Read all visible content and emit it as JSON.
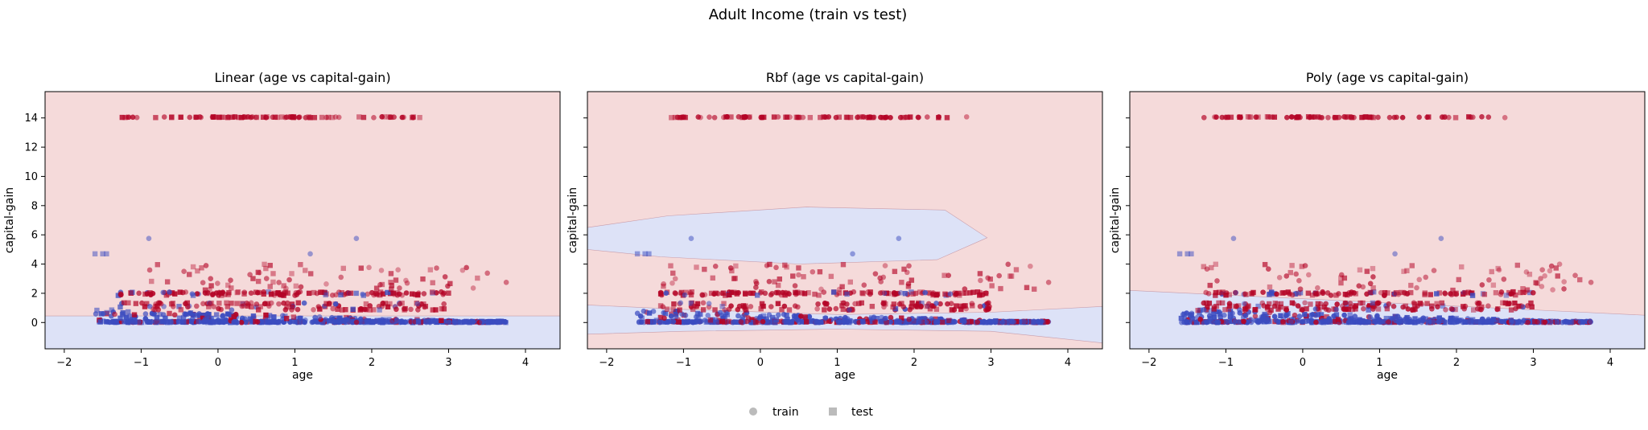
{
  "figure": {
    "title": "Adult Income (train vs test)"
  },
  "colors": {
    "class0_point": "#3b4cc0",
    "class1_point": "#b40426",
    "class0_region": "#dde2f7",
    "class1_region": "#f5dada",
    "legend_marker": "#bbbbbb"
  },
  "legend": {
    "placement": "bottom-center",
    "items": [
      {
        "label": "train",
        "marker": "circle"
      },
      {
        "label": "test",
        "marker": "square"
      }
    ]
  },
  "chart_data": [
    {
      "type": "scatter",
      "title": "Linear (age vs capital-gain)",
      "xlabel": "age",
      "ylabel": "capital-gain",
      "xlim": [
        -2.25,
        4.45
      ],
      "ylim": [
        -1.8,
        15.8
      ],
      "xticks": [
        -2,
        -1,
        0,
        1,
        2,
        3,
        4
      ],
      "yticks": [
        0,
        2,
        4,
        6,
        8,
        10,
        12,
        14
      ],
      "decision_boundary": [
        [
          -2.25,
          0.45
        ],
        [
          4.45,
          0.45
        ]
      ],
      "class0_region": "below"
    },
    {
      "type": "scatter",
      "title": "Rbf (age vs capital-gain)",
      "xlabel": "age",
      "ylabel": "capital-gain",
      "xlim": [
        -2.25,
        4.45
      ],
      "ylim": [
        -1.8,
        15.8
      ],
      "xticks": [
        -2,
        -1,
        0,
        1,
        2,
        3,
        4
      ],
      "yticks": [
        0,
        2,
        4,
        6,
        8,
        10,
        12,
        14
      ],
      "decision_regions": [
        {
          "shape": "band",
          "lower": [
            [
              -2.25,
              -0.8
            ],
            [
              -1.0,
              -0.6
            ],
            [
              1.0,
              -0.45
            ],
            [
              3.0,
              -0.6
            ],
            [
              4.45,
              -1.4
            ]
          ],
          "upper": [
            [
              -2.25,
              1.2
            ],
            [
              -1.0,
              0.9
            ],
            [
              1.0,
              0.55
            ],
            [
              3.0,
              0.7
            ],
            [
              4.45,
              1.1
            ]
          ]
        },
        {
          "shape": "blob",
          "outline": [
            [
              -2.25,
              6.5
            ],
            [
              -1.2,
              7.3
            ],
            [
              0.6,
              7.9
            ],
            [
              2.4,
              7.7
            ],
            [
              2.95,
              5.8
            ],
            [
              2.3,
              4.3
            ],
            [
              0.5,
              4.0
            ],
            [
              -1.3,
              4.5
            ],
            [
              -2.25,
              5.0
            ]
          ]
        }
      ]
    },
    {
      "type": "scatter",
      "title": "Poly (age vs capital-gain)",
      "xlabel": "age",
      "ylabel": "capital-gain",
      "xlim": [
        -2.25,
        4.45
      ],
      "ylim": [
        -1.8,
        15.8
      ],
      "xticks": [
        -2,
        -1,
        0,
        1,
        2,
        3,
        4
      ],
      "yticks": [
        0,
        2,
        4,
        6,
        8,
        10,
        12,
        14
      ],
      "decision_boundary": [
        [
          -2.25,
          2.2
        ],
        [
          4.45,
          0.5
        ]
      ],
      "class0_region": "below"
    }
  ]
}
